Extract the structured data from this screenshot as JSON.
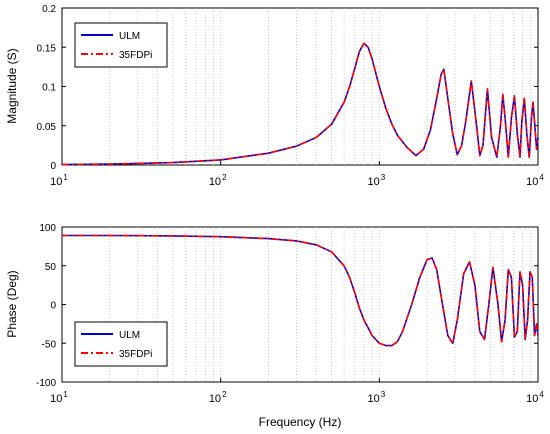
{
  "colors": {
    "ulm": "#0000cc",
    "fdpi": "#ff0000",
    "grid": "#bbbbbb",
    "axes": "#000000"
  },
  "xlabel": "Frequency (Hz)",
  "chart_data": [
    {
      "type": "line",
      "title": "",
      "xlabel": "",
      "ylabel": "Magnitude (S)",
      "xscale": "log",
      "xlim": [
        10,
        10000
      ],
      "ylim": [
        0,
        0.2
      ],
      "xticks": [
        {
          "value": 10,
          "base": "10",
          "exp": "1"
        },
        {
          "value": 100,
          "base": "10",
          "exp": "2"
        },
        {
          "value": 1000,
          "base": "10",
          "exp": "3"
        },
        {
          "value": 10000,
          "base": "10",
          "exp": "4"
        }
      ],
      "yticks": [
        {
          "value": 0,
          "label": "0"
        },
        {
          "value": 0.05,
          "label": "0.05"
        },
        {
          "value": 0.1,
          "label": "0.1"
        },
        {
          "value": 0.15,
          "label": "0.15"
        },
        {
          "value": 0.2,
          "label": "0.2"
        }
      ],
      "grid": "x-major-minor-dotted",
      "legend": {
        "position": "top-left",
        "entries": [
          "ULM",
          "35FDPi"
        ]
      },
      "series": [
        {
          "name": "ULM",
          "style": "solid",
          "x": [
            10,
            20,
            50,
            100,
            200,
            300,
            400,
            500,
            600,
            650,
            700,
            750,
            800,
            850,
            900,
            950,
            1000,
            1100,
            1200,
            1300,
            1500,
            1700,
            1900,
            2100,
            2300,
            2450,
            2550,
            2700,
            2900,
            3100,
            3300,
            3500,
            3800,
            4100,
            4300,
            4500,
            4800,
            5100,
            5500,
            5800,
            6000,
            6200,
            6500,
            6800,
            7100,
            7400,
            7700,
            7900,
            8200,
            8500,
            8800,
            9100,
            9300,
            9500,
            9800,
            10000
          ],
          "y": [
            0.0005,
            0.0012,
            0.003,
            0.0065,
            0.015,
            0.024,
            0.035,
            0.052,
            0.08,
            0.1,
            0.123,
            0.145,
            0.155,
            0.15,
            0.135,
            0.117,
            0.1,
            0.072,
            0.052,
            0.038,
            0.022,
            0.012,
            0.02,
            0.045,
            0.085,
            0.115,
            0.122,
            0.085,
            0.04,
            0.013,
            0.025,
            0.055,
            0.107,
            0.05,
            0.012,
            0.025,
            0.097,
            0.035,
            0.01,
            0.05,
            0.09,
            0.06,
            0.01,
            0.06,
            0.088,
            0.04,
            0.01,
            0.055,
            0.085,
            0.04,
            0.01,
            0.06,
            0.08,
            0.055,
            0.02,
            0.035
          ]
        },
        {
          "name": "35FDPi",
          "style": "dash-dot",
          "x": [
            10,
            20,
            50,
            100,
            200,
            300,
            400,
            500,
            600,
            650,
            700,
            750,
            800,
            850,
            900,
            950,
            1000,
            1100,
            1200,
            1300,
            1500,
            1700,
            1900,
            2100,
            2300,
            2450,
            2550,
            2700,
            2900,
            3100,
            3300,
            3500,
            3800,
            4100,
            4300,
            4500,
            4800,
            5100,
            5500,
            5800,
            6000,
            6200,
            6500,
            6800,
            7100,
            7400,
            7700,
            7900,
            8200,
            8500,
            8800,
            9100,
            9300,
            9500,
            9800,
            10000
          ],
          "y": [
            0.0005,
            0.0012,
            0.003,
            0.0065,
            0.015,
            0.024,
            0.035,
            0.052,
            0.08,
            0.1,
            0.123,
            0.145,
            0.155,
            0.15,
            0.135,
            0.117,
            0.1,
            0.072,
            0.052,
            0.038,
            0.022,
            0.012,
            0.02,
            0.045,
            0.085,
            0.115,
            0.122,
            0.085,
            0.04,
            0.013,
            0.025,
            0.055,
            0.107,
            0.05,
            0.012,
            0.025,
            0.097,
            0.035,
            0.01,
            0.05,
            0.09,
            0.06,
            0.01,
            0.06,
            0.088,
            0.04,
            0.01,
            0.055,
            0.085,
            0.04,
            0.01,
            0.06,
            0.08,
            0.055,
            0.02,
            0.035
          ]
        }
      ]
    },
    {
      "type": "line",
      "title": "",
      "xlabel": "Frequency (Hz)",
      "ylabel": "Phase (Deg)",
      "xscale": "log",
      "xlim": [
        10,
        10000
      ],
      "ylim": [
        -100,
        100
      ],
      "xticks": [
        {
          "value": 10,
          "base": "10",
          "exp": "1"
        },
        {
          "value": 100,
          "base": "10",
          "exp": "2"
        },
        {
          "value": 1000,
          "base": "10",
          "exp": "3"
        },
        {
          "value": 10000,
          "base": "10",
          "exp": "4"
        }
      ],
      "yticks": [
        {
          "value": -100,
          "label": "-100"
        },
        {
          "value": -50,
          "label": "-50"
        },
        {
          "value": 0,
          "label": "0"
        },
        {
          "value": 50,
          "label": "50"
        },
        {
          "value": 100,
          "label": "100"
        }
      ],
      "grid": "x-major-minor-dotted",
      "legend": {
        "position": "bottom-left",
        "entries": [
          "ULM",
          "35FDPi"
        ]
      },
      "series": [
        {
          "name": "ULM",
          "style": "solid",
          "x": [
            10,
            20,
            50,
            100,
            200,
            300,
            400,
            500,
            600,
            650,
            700,
            750,
            800,
            900,
            1000,
            1100,
            1200,
            1300,
            1400,
            1600,
            1800,
            2000,
            2150,
            2300,
            2500,
            2700,
            2900,
            3100,
            3400,
            3700,
            4000,
            4300,
            4600,
            4900,
            5200,
            5600,
            5900,
            6200,
            6500,
            6800,
            7100,
            7400,
            7700,
            8000,
            8300,
            8600,
            8900,
            9200,
            9500,
            9800,
            10000
          ],
          "y": [
            89,
            89,
            88.5,
            87.5,
            85,
            82,
            77,
            68,
            50,
            35,
            15,
            -5,
            -20,
            -40,
            -50,
            -53,
            -53,
            -48,
            -35,
            0,
            35,
            58,
            60,
            45,
            0,
            -40,
            -50,
            -20,
            40,
            55,
            25,
            -35,
            -45,
            0,
            48,
            0,
            -48,
            -20,
            45,
            35,
            -42,
            -35,
            42,
            25,
            -45,
            -20,
            42,
            35,
            -40,
            -25,
            -40
          ]
        },
        {
          "name": "35FDPi",
          "style": "dash-dot",
          "x": [
            10,
            20,
            50,
            100,
            200,
            300,
            400,
            500,
            600,
            650,
            700,
            750,
            800,
            900,
            1000,
            1100,
            1200,
            1300,
            1400,
            1600,
            1800,
            2000,
            2150,
            2300,
            2500,
            2700,
            2900,
            3100,
            3400,
            3700,
            4000,
            4300,
            4600,
            4900,
            5200,
            5600,
            5900,
            6200,
            6500,
            6800,
            7100,
            7400,
            7700,
            8000,
            8300,
            8600,
            8900,
            9200,
            9500,
            9800,
            10000
          ],
          "y": [
            89,
            89,
            88.5,
            87.5,
            85,
            82,
            77,
            68,
            50,
            35,
            15,
            -5,
            -20,
            -40,
            -50,
            -53,
            -53,
            -48,
            -35,
            0,
            35,
            58,
            60,
            45,
            0,
            -40,
            -50,
            -20,
            40,
            55,
            25,
            -35,
            -45,
            0,
            48,
            0,
            -48,
            -20,
            45,
            35,
            -42,
            -35,
            42,
            25,
            -45,
            -20,
            42,
            35,
            -40,
            -25,
            -40
          ]
        }
      ]
    }
  ]
}
